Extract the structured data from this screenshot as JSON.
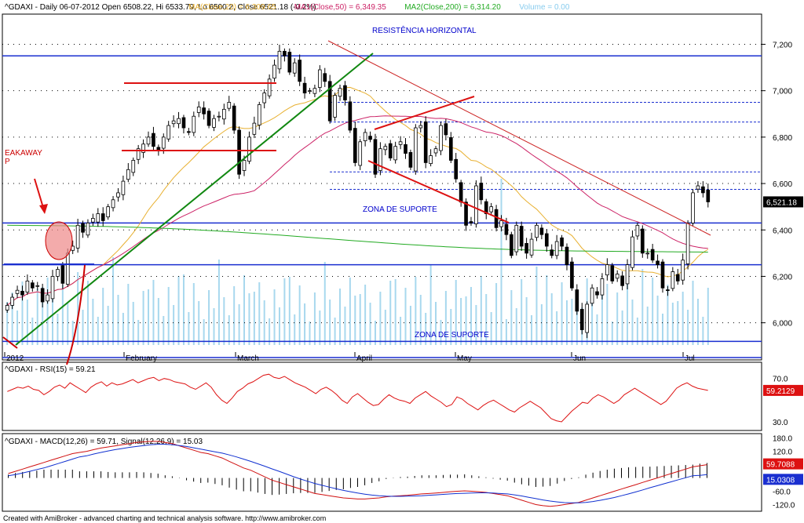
{
  "chart_data": [
    {
      "type": "candlestick",
      "title": "^GDAXI - Daily 06-07-2012 Open 6508.22, Hi 6533.79, Lo 6500.2, Close 6521.18 (-0.2%)",
      "legend": [
        {
          "text": "MA(Close,20) = 6,309.65",
          "color": "#e8b030"
        },
        {
          "text": "MA1(Close,50) = 6,349.35",
          "color": "#cc2266"
        },
        {
          "text": "MA2(Close,200) = 6,314.20",
          "color": "#22aa22"
        },
        {
          "text": "Volume = 0.00",
          "color": "#88ccee"
        }
      ],
      "x_labels": [
        "2012",
        "February",
        "March",
        "April",
        "May",
        "Jun",
        "Jul"
      ],
      "y_ticks": [
        "7,200",
        "7,000",
        "6,800",
        "6,600",
        "6,400",
        "6,200",
        "6,000"
      ],
      "y_values": [
        7200,
        7000,
        6800,
        6600,
        6400,
        6200,
        6000
      ],
      "ylim": [
        5840,
        7330
      ],
      "last_price_label": "6,521.18",
      "annotations": [
        "RESISTÊNCIA HORIZONTAL",
        "ZONA DE SUPORTE",
        "ZONA DE SUPORTE",
        "EAKAWAY",
        "P"
      ],
      "horizontal_lines": [
        7150,
        6430,
        6250,
        5920,
        5850
      ],
      "dashed_lines": [
        6950,
        6865,
        6650,
        6575
      ],
      "closes": [
        6075,
        6110,
        6140,
        6120,
        6180,
        6150,
        6160,
        6090,
        6120,
        6200,
        6230,
        6170,
        6300,
        6330,
        6420,
        6390,
        6430,
        6450,
        6470,
        6440,
        6500,
        6530,
        6560,
        6610,
        6660,
        6700,
        6750,
        6770,
        6800,
        6760,
        6740,
        6800,
        6850,
        6870,
        6880,
        6840,
        6820,
        6890,
        6930,
        6900,
        6850,
        6880,
        6890,
        6920,
        6950,
        6830,
        6640,
        6700,
        6800,
        6860,
        6940,
        6990,
        7050,
        7110,
        7170,
        7150,
        7080,
        7120,
        7040,
        6990,
        7000,
        7010,
        7090,
        7040,
        6870,
        6980,
        7010,
        6960,
        6830,
        6690,
        6780,
        6820,
        6790,
        6640,
        6750,
        6760,
        6710,
        6760,
        6780,
        6730,
        6670,
        6840,
        6850,
        6690,
        6720,
        6750,
        6850,
        6810,
        6700,
        6620,
        6520,
        6420,
        6430,
        6590,
        6530,
        6470,
        6500,
        6410,
        6440,
        6380,
        6290,
        6420,
        6330,
        6300,
        6360,
        6420,
        6380,
        6330,
        6290,
        6350,
        6330,
        6250,
        6150,
        6050,
        5970,
        6080,
        6150,
        6120,
        6190,
        6250,
        6180,
        6210,
        6160,
        6250,
        6370,
        6420,
        6300,
        6300,
        6270,
        6250,
        6150,
        6140,
        6220,
        6180,
        6270,
        6430,
        6560,
        6590,
        6560,
        6521
      ]
    },
    {
      "type": "line",
      "title": "^GDAXI - RSI(15) = 59.21",
      "y_ticks": [
        "70.0",
        "30.0"
      ],
      "last_value_label": "59.2129",
      "values": [
        58,
        60,
        62,
        61,
        63,
        60,
        59,
        55,
        58,
        62,
        64,
        61,
        66,
        63,
        60,
        57,
        62,
        65,
        67,
        63,
        66,
        64,
        65,
        67,
        69,
        66,
        68,
        70,
        71,
        68,
        70,
        69,
        67,
        66,
        65,
        62,
        60,
        63,
        66,
        62,
        55,
        50,
        47,
        52,
        58,
        61,
        65,
        67,
        70,
        73,
        74,
        71,
        70,
        72,
        69,
        66,
        64,
        62,
        59,
        56,
        60,
        62,
        59,
        55,
        50,
        47,
        53,
        56,
        52,
        48,
        45,
        46,
        51,
        55,
        52,
        50,
        49,
        47,
        52,
        55,
        58,
        54,
        51,
        48,
        44,
        46,
        53,
        51,
        47,
        44,
        41,
        45,
        48,
        50,
        47,
        44,
        41,
        39,
        43,
        46,
        49,
        46,
        43,
        38,
        33,
        31,
        30,
        35,
        40,
        44,
        48,
        47,
        52,
        55,
        53,
        50,
        47,
        50,
        55,
        58,
        61,
        58,
        55,
        52,
        49,
        46,
        49,
        55,
        61,
        64,
        66,
        63,
        61,
        60,
        59
      ]
    },
    {
      "type": "line",
      "title": "^GDAXI - MACD(12,26) = 59.71, Signal(12,26,9) = 15.03",
      "y_ticks": [
        "180.0",
        "120.0",
        "60.0",
        "0.0",
        "-60.0",
        "-120.0"
      ],
      "y_values": [
        180,
        120,
        60,
        0,
        -60,
        -120
      ],
      "ylim": [
        -150,
        200
      ],
      "last_value_labels": [
        "59.7088",
        "15.0308"
      ],
      "series": [
        {
          "name": "MACD(12,26)",
          "color": "#d01010",
          "values": [
            20,
            30,
            40,
            50,
            60,
            70,
            80,
            90,
            100,
            110,
            115,
            120,
            128,
            135,
            140,
            145,
            150,
            155,
            160,
            163,
            165,
            165,
            160,
            155,
            145,
            135,
            125,
            115,
            110,
            100,
            90,
            75,
            60,
            45,
            35,
            20,
            5,
            -10,
            -20,
            -30,
            -40,
            -50,
            -60,
            -70,
            -75,
            -80,
            -85,
            -90,
            -92,
            -95,
            -95,
            -92,
            -90,
            -85,
            -82,
            -80,
            -78,
            -75,
            -72,
            -70,
            -68,
            -65,
            -62,
            -60,
            -58,
            -60,
            -62,
            -65,
            -70,
            -75,
            -80,
            -90,
            -100,
            -110,
            -120,
            -125,
            -128,
            -125,
            -120,
            -115,
            -110,
            -100,
            -90,
            -80,
            -70,
            -60,
            -50,
            -40,
            -30,
            -20,
            -10,
            0,
            10,
            20,
            30,
            40,
            50,
            55,
            60
          ]
        },
        {
          "name": "Signal(12,26,9)",
          "color": "#1030d0",
          "values": [
            10,
            15,
            22,
            30,
            38,
            45,
            55,
            65,
            75,
            85,
            95,
            100,
            108,
            115,
            122,
            128,
            133,
            138,
            142,
            146,
            150,
            152,
            152,
            150,
            146,
            142,
            136,
            130,
            124,
            118,
            112,
            104,
            95,
            85,
            75,
            64,
            53,
            41,
            30,
            18,
            6,
            -5,
            -15,
            -25,
            -33,
            -41,
            -49,
            -56,
            -62,
            -68,
            -73,
            -77,
            -80,
            -82,
            -83,
            -83,
            -82,
            -81,
            -80,
            -78,
            -76,
            -74,
            -72,
            -70,
            -69,
            -68,
            -67,
            -67,
            -68,
            -70,
            -72,
            -76,
            -81,
            -87,
            -93,
            -99,
            -104,
            -108,
            -111,
            -112,
            -112,
            -110,
            -106,
            -101,
            -95,
            -88,
            -80,
            -72,
            -63,
            -54,
            -44,
            -35,
            -26,
            -17,
            -8,
            1,
            10,
            12,
            15
          ]
        }
      ]
    }
  ],
  "footer": "Created with AmiBroker - advanced charting and technical analysis software. http://www.amibroker.com"
}
